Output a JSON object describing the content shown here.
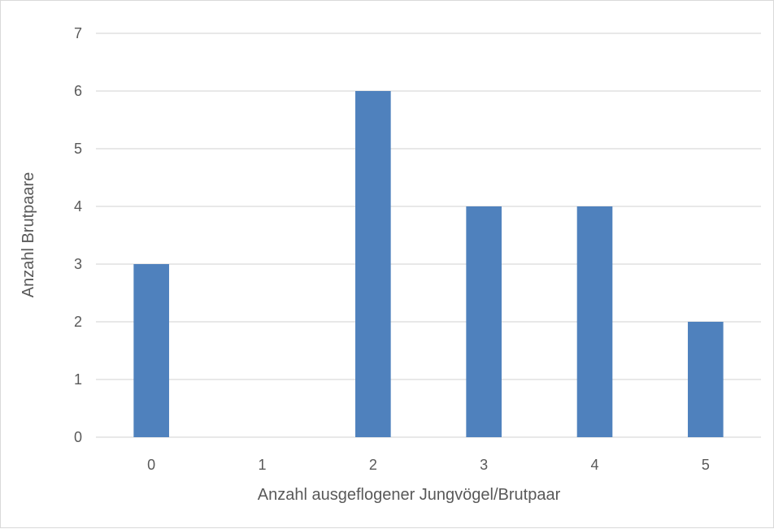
{
  "chart_data": {
    "type": "bar",
    "categories": [
      "0",
      "1",
      "2",
      "3",
      "4",
      "5"
    ],
    "values": [
      3,
      0,
      6,
      4,
      4,
      2
    ],
    "xlabel": "Anzahl ausgeflogener Jungvögel/Brutpaar",
    "ylabel": "Anzahl Brutpaare",
    "ylim": [
      0,
      7
    ],
    "yticks": [
      "0",
      "1",
      "2",
      "3",
      "4",
      "5",
      "6",
      "7"
    ],
    "grid": true,
    "legend": "none",
    "bar_color": "#4f81bd",
    "grid_color": "#d9d9d9"
  }
}
